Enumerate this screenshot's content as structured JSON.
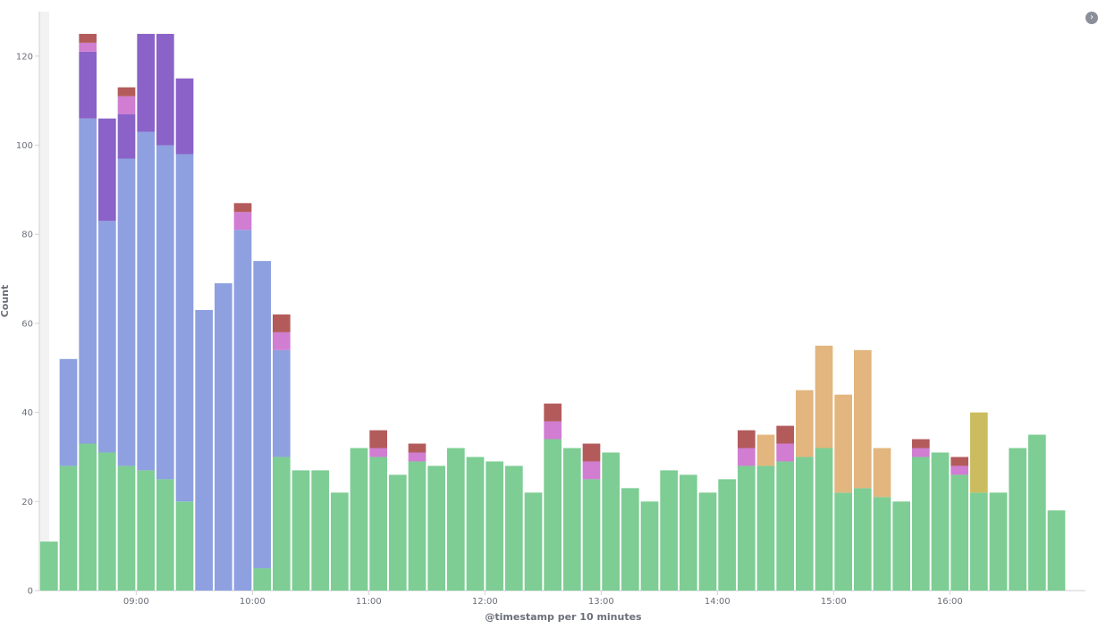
{
  "chart_data": {
    "type": "bar",
    "stacked": true,
    "title": "",
    "xlabel": "@timestamp per 10 minutes",
    "ylabel": "Count",
    "ylim": [
      0,
      130
    ],
    "y_ticks": [
      0,
      20,
      40,
      60,
      80,
      100,
      120
    ],
    "x_ticks": [
      "09:00",
      "10:00",
      "11:00",
      "12:00",
      "13:00",
      "14:00",
      "15:00",
      "16:00"
    ],
    "grid": false,
    "legend": "collapsed",
    "x": [
      "08:10",
      "08:20",
      "08:30",
      "08:40",
      "08:50",
      "09:00",
      "09:10",
      "09:20",
      "09:30",
      "09:40",
      "09:50",
      "10:00",
      "10:10",
      "10:20",
      "10:30",
      "10:40",
      "10:50",
      "11:00",
      "11:10",
      "11:20",
      "11:30",
      "11:40",
      "11:50",
      "12:00",
      "12:10",
      "12:20",
      "12:30",
      "12:40",
      "12:50",
      "13:00",
      "13:10",
      "13:20",
      "13:30",
      "13:40",
      "13:50",
      "14:00",
      "14:10",
      "14:20",
      "14:30",
      "14:40",
      "14:50",
      "15:00",
      "15:10",
      "15:20",
      "15:30",
      "15:40",
      "15:50",
      "16:00",
      "16:10",
      "16:20",
      "16:30",
      "16:40",
      "16:50",
      "17:00"
    ],
    "series": [
      {
        "color": "#7dcd94",
        "values": [
          11,
          28,
          33,
          31,
          28,
          27,
          25,
          20,
          0,
          0,
          0,
          5,
          30,
          27,
          27,
          22,
          32,
          30,
          26,
          29,
          28,
          32,
          30,
          29,
          28,
          22,
          34,
          32,
          25,
          31,
          23,
          20,
          27,
          26,
          22,
          25,
          28,
          28,
          29,
          30,
          32,
          22,
          23,
          21,
          20,
          30,
          31,
          26,
          22,
          22,
          32,
          35,
          18,
          0
        ]
      },
      {
        "color": "#8ea0e0",
        "values": [
          0,
          24,
          73,
          52,
          69,
          76,
          75,
          78,
          63,
          69,
          81,
          69,
          24,
          0,
          0,
          0,
          0,
          0,
          0,
          0,
          0,
          0,
          0,
          0,
          0,
          0,
          0,
          0,
          0,
          0,
          0,
          0,
          0,
          0,
          0,
          0,
          0,
          0,
          0,
          0,
          0,
          0,
          0,
          0,
          0,
          0,
          0,
          0,
          0,
          0,
          0,
          0,
          0,
          0
        ]
      },
      {
        "color": "#8a62c8",
        "values": [
          0,
          0,
          15,
          23,
          10,
          22,
          25,
          17,
          0,
          0,
          0,
          0,
          0,
          0,
          0,
          0,
          0,
          0,
          0,
          0,
          0,
          0,
          0,
          0,
          0,
          0,
          0,
          0,
          0,
          0,
          0,
          0,
          0,
          0,
          0,
          0,
          0,
          0,
          0,
          0,
          0,
          0,
          0,
          0,
          0,
          0,
          0,
          0,
          0,
          0,
          0,
          0,
          0,
          0
        ]
      },
      {
        "color": "#e2b67e",
        "values": [
          0,
          0,
          0,
          0,
          0,
          0,
          0,
          0,
          0,
          0,
          0,
          0,
          0,
          0,
          0,
          0,
          0,
          0,
          0,
          0,
          0,
          0,
          0,
          0,
          0,
          0,
          0,
          0,
          0,
          0,
          0,
          0,
          0,
          0,
          0,
          0,
          0,
          7,
          0,
          15,
          23,
          22,
          31,
          11,
          0,
          0,
          0,
          0,
          0,
          0,
          0,
          0,
          0,
          0
        ]
      },
      {
        "color": "#d07dd2",
        "values": [
          0,
          0,
          2,
          0,
          4,
          0,
          0,
          0,
          0,
          0,
          4,
          0,
          4,
          0,
          0,
          0,
          0,
          2,
          0,
          2,
          0,
          0,
          0,
          0,
          0,
          0,
          4,
          0,
          4,
          0,
          0,
          0,
          0,
          0,
          0,
          0,
          4,
          0,
          4,
          0,
          0,
          0,
          0,
          0,
          0,
          2,
          0,
          2,
          0,
          0,
          0,
          0,
          0,
          0
        ]
      },
      {
        "color": "#b35b5b",
        "values": [
          0,
          0,
          2,
          0,
          2,
          0,
          0,
          0,
          0,
          0,
          2,
          0,
          4,
          0,
          0,
          0,
          0,
          4,
          0,
          2,
          0,
          0,
          0,
          0,
          0,
          0,
          4,
          0,
          4,
          0,
          0,
          0,
          0,
          0,
          0,
          0,
          4,
          0,
          4,
          0,
          0,
          0,
          0,
          0,
          0,
          2,
          0,
          2,
          0,
          0,
          0,
          0,
          0,
          0
        ]
      },
      {
        "color": "#cbbd5f",
        "values": [
          0,
          0,
          0,
          0,
          0,
          0,
          0,
          0,
          0,
          0,
          0,
          0,
          0,
          0,
          0,
          0,
          0,
          0,
          0,
          0,
          0,
          0,
          0,
          0,
          0,
          0,
          0,
          0,
          0,
          0,
          0,
          0,
          0,
          0,
          0,
          0,
          0,
          0,
          0,
          0,
          0,
          0,
          0,
          0,
          0,
          0,
          0,
          0,
          18,
          0,
          0,
          0,
          0,
          0
        ]
      }
    ]
  },
  "legend_toggle_icon": "chevron-circle-icon"
}
